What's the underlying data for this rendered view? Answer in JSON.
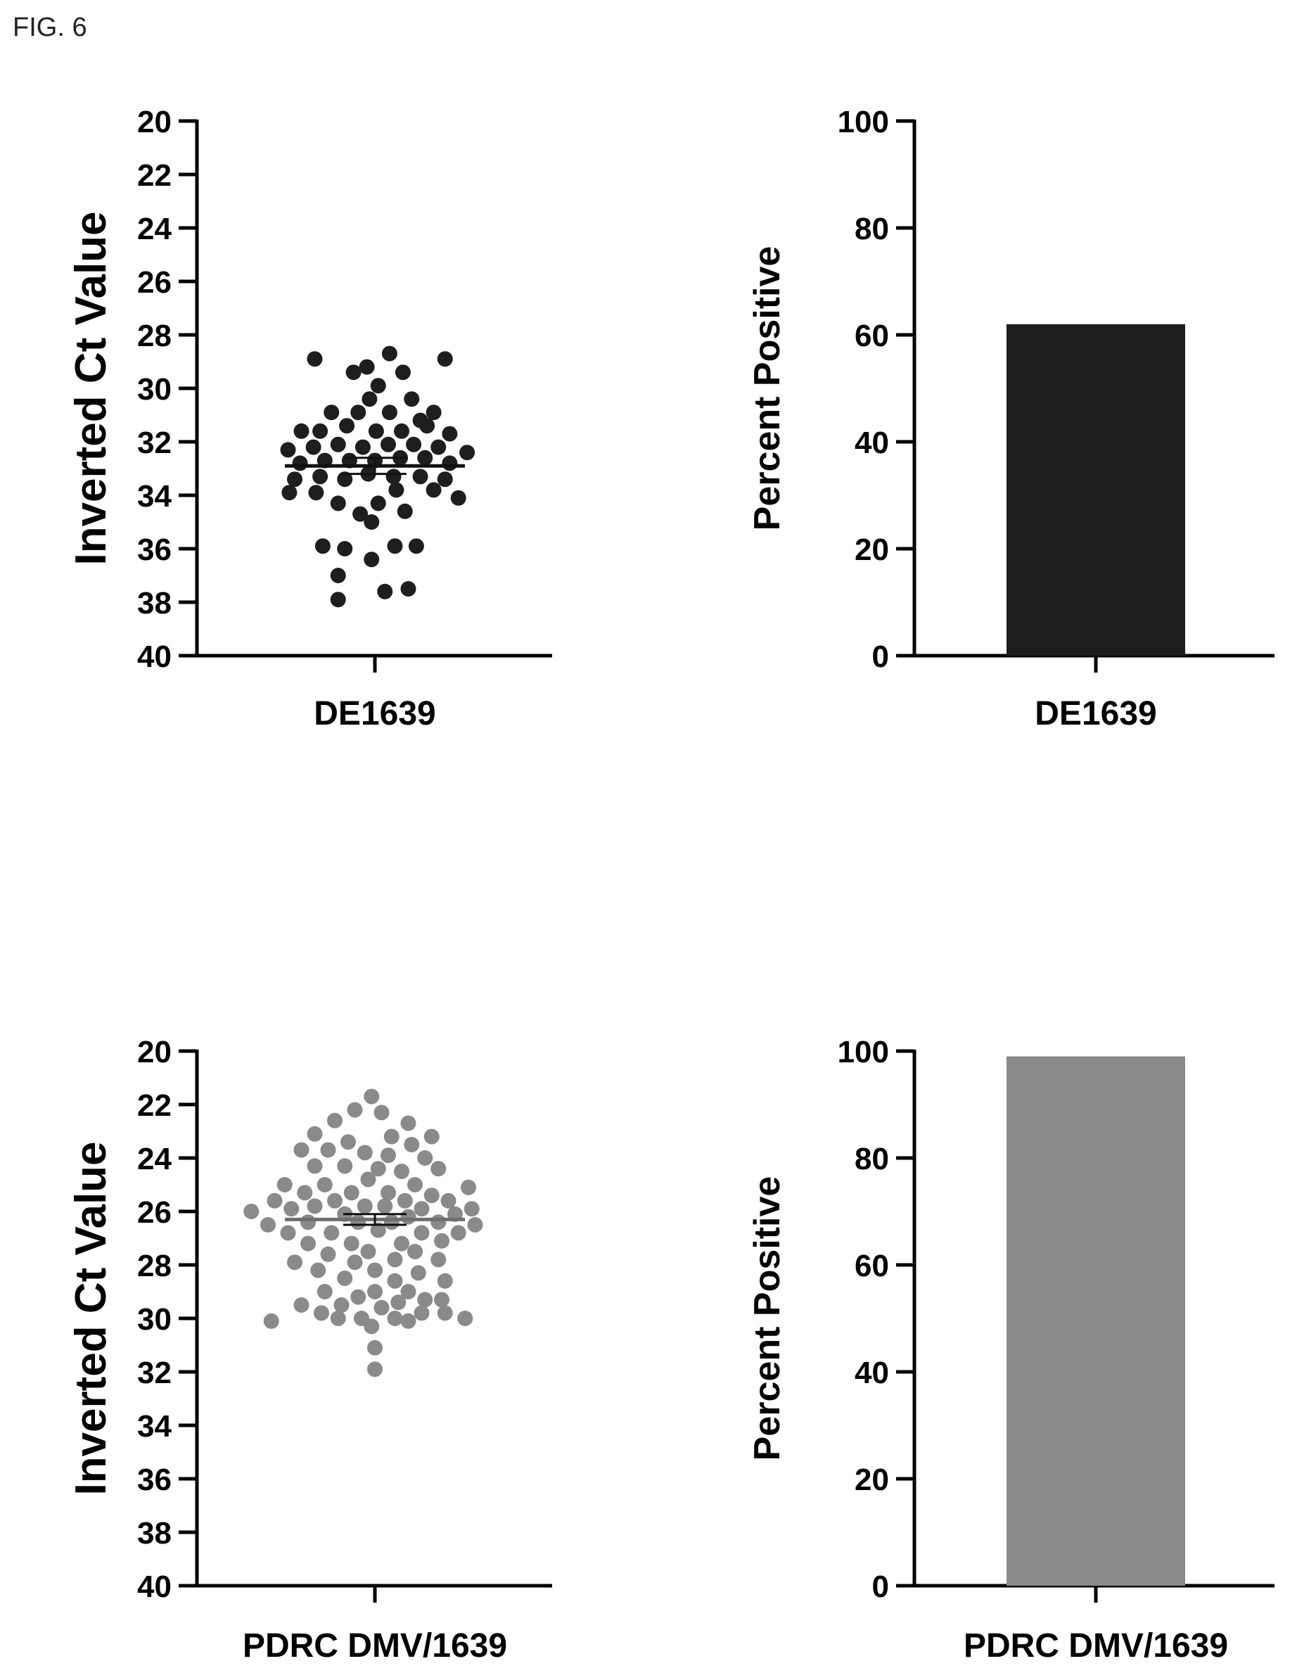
{
  "figure_label": "FIG. 6",
  "colors": {
    "dark": "#1e1e1e",
    "gray": "#8a8a8a",
    "axis": "#000000"
  },
  "chart_data": [
    {
      "id": "scatter-top",
      "type": "scatter",
      "ylabel": "Inverted Ct Value",
      "category": "DE1639",
      "ylim": [
        20,
        40
      ],
      "y_inverted": true,
      "yticks": [
        20,
        22,
        24,
        26,
        28,
        30,
        32,
        34,
        36,
        38,
        40
      ],
      "mean": 32.9,
      "sem": 0.3,
      "color": "#1e1e1e",
      "points": [
        {
          "dx": -0.9,
          "y": 28.9
        },
        {
          "dx": 1.05,
          "y": 28.9
        },
        {
          "dx": 0.22,
          "y": 28.7
        },
        {
          "dx": -0.12,
          "y": 29.2
        },
        {
          "dx": -0.32,
          "y": 29.4
        },
        {
          "dx": 0.42,
          "y": 29.4
        },
        {
          "dx": 0.05,
          "y": 29.9
        },
        {
          "dx": 0.55,
          "y": 30.4
        },
        {
          "dx": -0.08,
          "y": 30.4
        },
        {
          "dx": -0.65,
          "y": 30.9
        },
        {
          "dx": -0.25,
          "y": 30.9
        },
        {
          "dx": 0.22,
          "y": 30.9
        },
        {
          "dx": 0.88,
          "y": 30.9
        },
        {
          "dx": 0.68,
          "y": 31.2
        },
        {
          "dx": -1.1,
          "y": 31.6
        },
        {
          "dx": -0.82,
          "y": 31.6
        },
        {
          "dx": -0.42,
          "y": 31.4
        },
        {
          "dx": 0.02,
          "y": 31.6
        },
        {
          "dx": 0.4,
          "y": 31.6
        },
        {
          "dx": 0.78,
          "y": 31.4
        },
        {
          "dx": 1.12,
          "y": 31.7
        },
        {
          "dx": -1.3,
          "y": 32.3
        },
        {
          "dx": -0.92,
          "y": 32.2
        },
        {
          "dx": -0.55,
          "y": 32.1
        },
        {
          "dx": -0.18,
          "y": 32.2
        },
        {
          "dx": 0.2,
          "y": 32.1
        },
        {
          "dx": 0.58,
          "y": 32.1
        },
        {
          "dx": 0.95,
          "y": 32.2
        },
        {
          "dx": 1.38,
          "y": 32.4
        },
        {
          "dx": -1.12,
          "y": 32.8
        },
        {
          "dx": -0.75,
          "y": 32.7
        },
        {
          "dx": -0.38,
          "y": 32.7
        },
        {
          "dx": 0.0,
          "y": 32.7
        },
        {
          "dx": 0.38,
          "y": 32.6
        },
        {
          "dx": 0.75,
          "y": 32.6
        },
        {
          "dx": 1.12,
          "y": 32.8
        },
        {
          "dx": -1.2,
          "y": 33.4
        },
        {
          "dx": -0.82,
          "y": 33.3
        },
        {
          "dx": -0.45,
          "y": 33.4
        },
        {
          "dx": -0.1,
          "y": 33.2
        },
        {
          "dx": 0.28,
          "y": 33.3
        },
        {
          "dx": 0.68,
          "y": 33.3
        },
        {
          "dx": 1.05,
          "y": 33.4
        },
        {
          "dx": -1.28,
          "y": 33.9
        },
        {
          "dx": -0.88,
          "y": 33.9
        },
        {
          "dx": 0.32,
          "y": 33.8
        },
        {
          "dx": 0.88,
          "y": 33.8
        },
        {
          "dx": 1.25,
          "y": 34.1
        },
        {
          "dx": -0.55,
          "y": 34.3
        },
        {
          "dx": 0.05,
          "y": 34.3
        },
        {
          "dx": 0.45,
          "y": 34.6
        },
        {
          "dx": -0.22,
          "y": 34.7
        },
        {
          "dx": -0.05,
          "y": 35.0
        },
        {
          "dx": -0.78,
          "y": 35.9
        },
        {
          "dx": -0.45,
          "y": 36.0
        },
        {
          "dx": 0.3,
          "y": 35.9
        },
        {
          "dx": 0.62,
          "y": 35.9
        },
        {
          "dx": -0.05,
          "y": 36.4
        },
        {
          "dx": -0.55,
          "y": 37.0
        },
        {
          "dx": 0.5,
          "y": 37.5
        },
        {
          "dx": 0.15,
          "y": 37.6
        },
        {
          "dx": -0.55,
          "y": 37.9
        }
      ]
    },
    {
      "id": "bar-top",
      "type": "bar",
      "ylabel": "Percent Positive",
      "categories": [
        "DE1639"
      ],
      "values": [
        62
      ],
      "ylim": [
        0,
        100
      ],
      "yticks": [
        0,
        20,
        40,
        60,
        80,
        100
      ],
      "color": "#1e1e1e"
    },
    {
      "id": "scatter-bottom",
      "type": "scatter",
      "ylabel": "Inverted Ct Value",
      "category": "PDRC DMV/1639",
      "ylim": [
        20,
        40
      ],
      "y_inverted": true,
      "yticks": [
        20,
        22,
        24,
        26,
        28,
        30,
        32,
        34,
        36,
        38,
        40
      ],
      "mean": 26.3,
      "sem": 0.2,
      "color": "#8a8a8a",
      "points": [
        {
          "dx": -0.05,
          "y": 21.7
        },
        {
          "dx": -0.3,
          "y": 22.2
        },
        {
          "dx": 0.1,
          "y": 22.3
        },
        {
          "dx": -0.6,
          "y": 22.6
        },
        {
          "dx": 0.5,
          "y": 22.7
        },
        {
          "dx": -0.9,
          "y": 23.1
        },
        {
          "dx": 0.25,
          "y": 23.2
        },
        {
          "dx": 0.85,
          "y": 23.2
        },
        {
          "dx": -0.4,
          "y": 23.4
        },
        {
          "dx": 0.55,
          "y": 23.5
        },
        {
          "dx": -1.1,
          "y": 23.7
        },
        {
          "dx": -0.7,
          "y": 23.7
        },
        {
          "dx": -0.15,
          "y": 23.8
        },
        {
          "dx": 0.2,
          "y": 23.9
        },
        {
          "dx": 0.75,
          "y": 24.0
        },
        {
          "dx": -0.9,
          "y": 24.3
        },
        {
          "dx": -0.45,
          "y": 24.3
        },
        {
          "dx": 0.05,
          "y": 24.4
        },
        {
          "dx": 0.4,
          "y": 24.5
        },
        {
          "dx": 0.95,
          "y": 24.4
        },
        {
          "dx": -0.1,
          "y": 24.8
        },
        {
          "dx": -1.35,
          "y": 25.0
        },
        {
          "dx": -0.75,
          "y": 25.0
        },
        {
          "dx": 0.6,
          "y": 25.0
        },
        {
          "dx": 1.4,
          "y": 25.1
        },
        {
          "dx": -1.05,
          "y": 25.3
        },
        {
          "dx": -0.35,
          "y": 25.3
        },
        {
          "dx": 0.2,
          "y": 25.3
        },
        {
          "dx": 0.85,
          "y": 25.4
        },
        {
          "dx": -1.5,
          "y": 25.6
        },
        {
          "dx": -0.6,
          "y": 25.6
        },
        {
          "dx": 0.45,
          "y": 25.6
        },
        {
          "dx": 1.1,
          "y": 25.6
        },
        {
          "dx": -1.25,
          "y": 25.9
        },
        {
          "dx": -0.9,
          "y": 25.8
        },
        {
          "dx": -0.15,
          "y": 25.8
        },
        {
          "dx": 0.15,
          "y": 25.8
        },
        {
          "dx": 0.7,
          "y": 25.9
        },
        {
          "dx": 1.45,
          "y": 25.9
        },
        {
          "dx": -1.85,
          "y": 26.0
        },
        {
          "dx": -0.45,
          "y": 26.1
        },
        {
          "dx": 0.5,
          "y": 26.2
        },
        {
          "dx": 1.2,
          "y": 26.1
        },
        {
          "dx": -1.6,
          "y": 26.5
        },
        {
          "dx": -1.0,
          "y": 26.4
        },
        {
          "dx": -0.25,
          "y": 26.4
        },
        {
          "dx": 0.25,
          "y": 26.4
        },
        {
          "dx": 0.95,
          "y": 26.4
        },
        {
          "dx": 1.5,
          "y": 26.5
        },
        {
          "dx": -1.3,
          "y": 26.8
        },
        {
          "dx": -0.65,
          "y": 26.8
        },
        {
          "dx": 0.05,
          "y": 26.7
        },
        {
          "dx": 0.7,
          "y": 26.8
        },
        {
          "dx": 1.25,
          "y": 26.8
        },
        {
          "dx": -1.0,
          "y": 27.2
        },
        {
          "dx": -0.35,
          "y": 27.2
        },
        {
          "dx": 0.4,
          "y": 27.2
        },
        {
          "dx": 1.0,
          "y": 27.1
        },
        {
          "dx": -0.1,
          "y": 27.5
        },
        {
          "dx": 0.6,
          "y": 27.5
        },
        {
          "dx": -0.7,
          "y": 27.6
        },
        {
          "dx": -1.2,
          "y": 27.9
        },
        {
          "dx": -0.3,
          "y": 27.9
        },
        {
          "dx": 0.3,
          "y": 27.8
        },
        {
          "dx": 0.95,
          "y": 27.8
        },
        {
          "dx": -0.85,
          "y": 28.2
        },
        {
          "dx": 0.0,
          "y": 28.2
        },
        {
          "dx": 0.65,
          "y": 28.3
        },
        {
          "dx": -0.45,
          "y": 28.5
        },
        {
          "dx": 0.3,
          "y": 28.6
        },
        {
          "dx": 1.05,
          "y": 28.6
        },
        {
          "dx": -0.75,
          "y": 29.0
        },
        {
          "dx": 0.0,
          "y": 29.0
        },
        {
          "dx": 0.5,
          "y": 29.0
        },
        {
          "dx": -0.25,
          "y": 29.2
        },
        {
          "dx": 0.75,
          "y": 29.3
        },
        {
          "dx": 1.0,
          "y": 29.3
        },
        {
          "dx": -1.1,
          "y": 29.5
        },
        {
          "dx": -0.5,
          "y": 29.5
        },
        {
          "dx": 0.1,
          "y": 29.6
        },
        {
          "dx": 0.35,
          "y": 29.4
        },
        {
          "dx": -0.8,
          "y": 29.8
        },
        {
          "dx": 0.7,
          "y": 29.8
        },
        {
          "dx": 1.05,
          "y": 29.8
        },
        {
          "dx": -1.55,
          "y": 30.1
        },
        {
          "dx": -0.55,
          "y": 30.0
        },
        {
          "dx": -0.2,
          "y": 30.0
        },
        {
          "dx": 0.3,
          "y": 30.0
        },
        {
          "dx": 1.35,
          "y": 30.0
        },
        {
          "dx": 0.5,
          "y": 30.1
        },
        {
          "dx": -0.05,
          "y": 30.3
        },
        {
          "dx": 0.0,
          "y": 31.1
        },
        {
          "dx": 0.0,
          "y": 31.9
        }
      ]
    },
    {
      "id": "bar-bottom",
      "type": "bar",
      "ylabel": "Percent Positive",
      "categories": [
        "PDRC DMV/1639"
      ],
      "values": [
        99
      ],
      "ylim": [
        0,
        100
      ],
      "yticks": [
        0,
        20,
        40,
        60,
        80,
        100
      ],
      "color": "#8a8a8a"
    }
  ]
}
